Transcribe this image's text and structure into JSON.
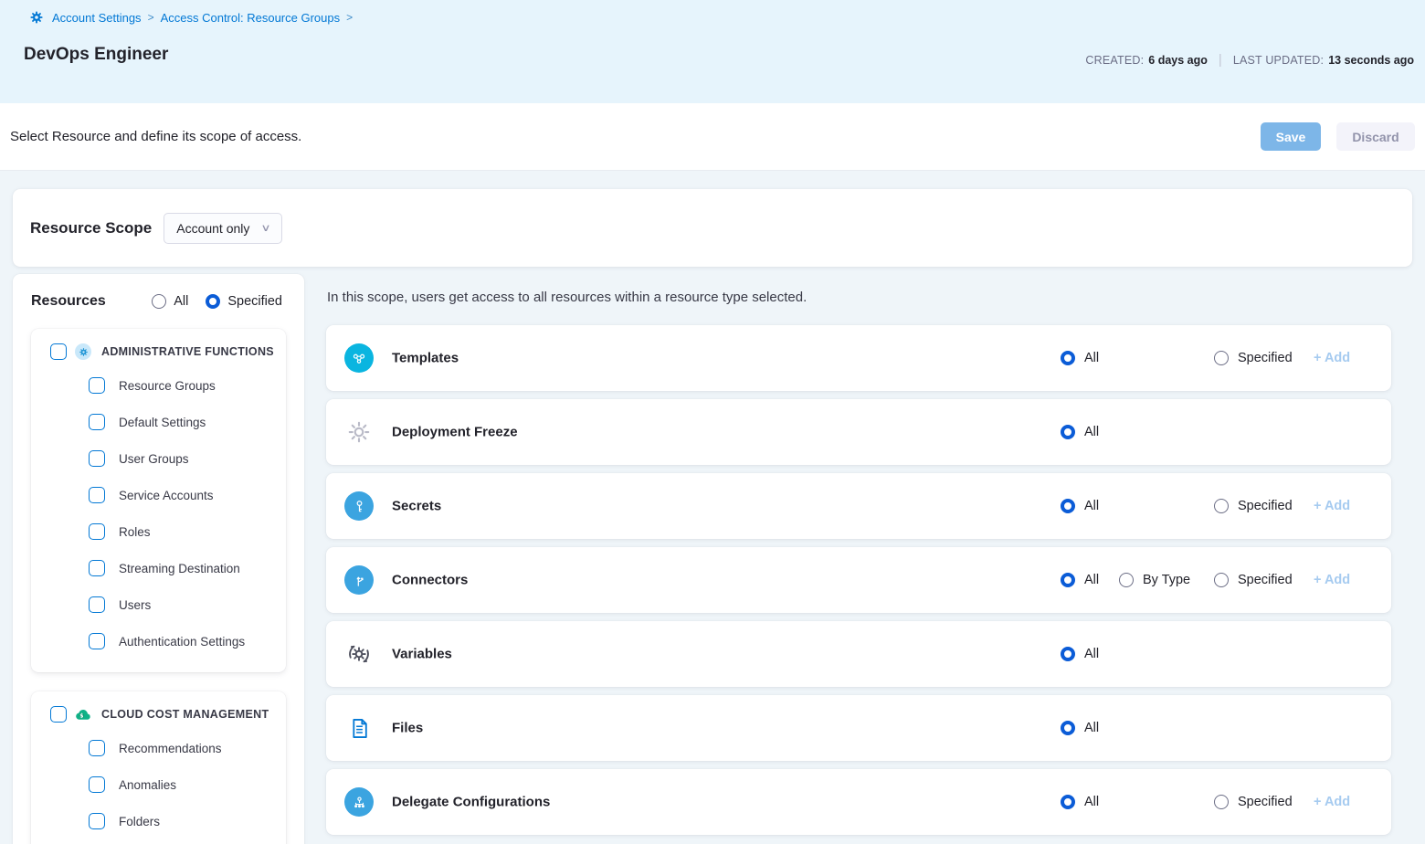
{
  "breadcrumb": {
    "items": [
      "Account Settings",
      "Access Control: Resource Groups"
    ],
    "separator": ">"
  },
  "header": {
    "title": "DevOps Engineer",
    "created_label": "CREATED:",
    "created_value": "6 days ago",
    "updated_label": "LAST UPDATED:",
    "updated_value": "13 seconds ago"
  },
  "toolbar": {
    "description": "Select Resource and define its scope of access.",
    "save_label": "Save",
    "discard_label": "Discard"
  },
  "resource_scope": {
    "label": "Resource Scope",
    "selected_value": "Account only",
    "chevron_icon": "chevron-down-icon"
  },
  "sidebar": {
    "title": "Resources",
    "mode_options": [
      "All",
      "Specified"
    ],
    "mode_selected": "Specified",
    "groups": [
      {
        "name": "ADMINISTRATIVE FUNCTIONS",
        "icon": "administrative-functions-icon",
        "checked": false,
        "items": [
          "Resource Groups",
          "Default Settings",
          "User Groups",
          "Service Accounts",
          "Roles",
          "Streaming Destination",
          "Users",
          "Authentication Settings"
        ]
      },
      {
        "name": "CLOUD COST MANAGEMENT",
        "icon": "cloud-cost-management-icon",
        "checked": false,
        "items": [
          "Recommendations",
          "Anomalies",
          "Folders"
        ]
      }
    ]
  },
  "main": {
    "intro": "In this scope, users get access to all resources within a resource type selected.",
    "add_label": "+ Add",
    "rows": [
      {
        "name": "Templates",
        "icon": "templates-icon",
        "options": [
          "All",
          "Specified"
        ],
        "selected": "All",
        "has_add": true
      },
      {
        "name": "Deployment Freeze",
        "icon": "deployment-freeze-icon",
        "options": [
          "All"
        ],
        "selected": "All",
        "has_add": false
      },
      {
        "name": "Secrets",
        "icon": "secrets-icon",
        "options": [
          "All",
          "Specified"
        ],
        "selected": "All",
        "has_add": true
      },
      {
        "name": "Connectors",
        "icon": "connectors-icon",
        "options": [
          "All",
          "By Type",
          "Specified"
        ],
        "selected": "All",
        "has_add": true
      },
      {
        "name": "Variables",
        "icon": "variables-icon",
        "options": [
          "All"
        ],
        "selected": "All",
        "has_add": false
      },
      {
        "name": "Files",
        "icon": "files-icon",
        "options": [
          "All"
        ],
        "selected": "All",
        "has_add": false
      },
      {
        "name": "Delegate Configurations",
        "icon": "delegate-configurations-icon",
        "options": [
          "All",
          "Specified"
        ],
        "selected": "All",
        "has_add": true
      }
    ]
  },
  "colors": {
    "primary_blue": "#0278d5",
    "radio_checked_blue": "#0b5cd7",
    "header_background": "#e6f4fc",
    "content_background": "#eff5f9",
    "save_button": "#7db6e8",
    "discard_text": "#9293ab",
    "add_link_disabled": "#a6cbf0",
    "templates_icon": "#0ab5e0",
    "blue_icon_circle": "#3ba4e0",
    "cloud_cost_green": "#0fb287"
  }
}
